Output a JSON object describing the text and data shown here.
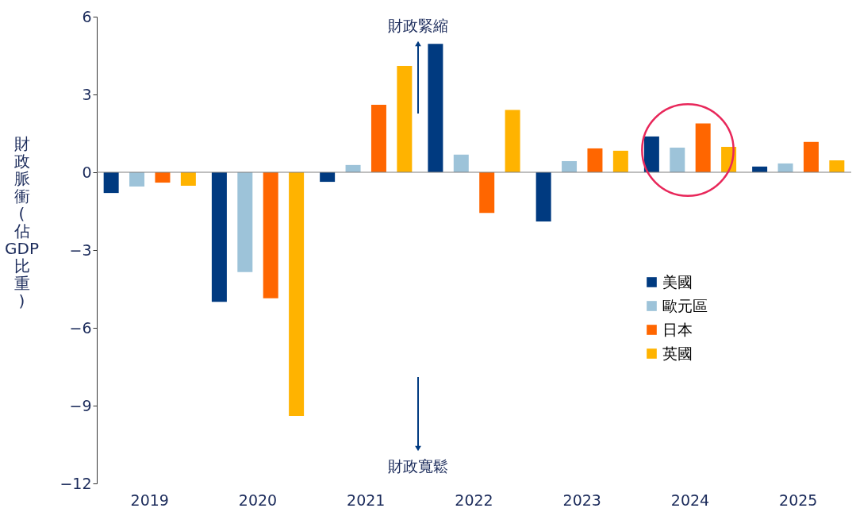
{
  "chart_data": {
    "type": "bar",
    "ylabel": "財政脈衝(佔GDP比重)",
    "categories": [
      "2019",
      "2020",
      "2021",
      "2022",
      "2023",
      "2024",
      "2025"
    ],
    "series": [
      {
        "name": "美國",
        "color": "#003a80",
        "values": [
          -0.8,
          -5.0,
          -0.37,
          4.95,
          -1.9,
          1.38,
          0.22
        ]
      },
      {
        "name": "歐元區",
        "color": "#9dc3d9",
        "values": [
          -0.55,
          -3.85,
          0.28,
          0.68,
          0.43,
          0.95,
          0.34
        ]
      },
      {
        "name": "日本",
        "color": "#ff6600",
        "values": [
          -0.4,
          -4.86,
          2.6,
          -1.57,
          0.92,
          1.88,
          1.17
        ]
      },
      {
        "name": "英國",
        "color": "#ffb300",
        "values": [
          -0.52,
          -9.4,
          4.1,
          2.4,
          0.83,
          0.98,
          0.46
        ]
      }
    ],
    "ref_lines": [
      {
        "axis": "y",
        "value": 0,
        "color": "#7f7f7f"
      }
    ],
    "ylim": [
      -12,
      6
    ],
    "yticks": [
      -12,
      -9,
      -6,
      -3,
      0,
      3,
      6
    ],
    "grid": false,
    "legend": "right",
    "annotations": [
      "財政緊縮",
      "財政寬鬆"
    ]
  }
}
